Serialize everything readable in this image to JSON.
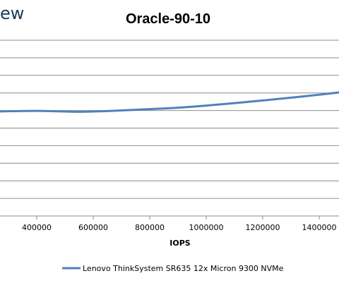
{
  "brand": {
    "logo_fragment": "ew"
  },
  "chart_data": {
    "type": "line",
    "title": "Oracle-90-10",
    "xlabel": "IOPS",
    "ylabel": "",
    "x_ticks": [
      400000,
      600000,
      800000,
      1000000,
      1200000,
      1400000
    ],
    "x_tick_labels": [
      "400000",
      "600000",
      "800000",
      "1000000",
      "1200000",
      "1400000"
    ],
    "xlim": [
      270000,
      1470000
    ],
    "ylim": [
      0,
      10
    ],
    "grid": "horizontal",
    "legend_position": "bottom",
    "series": [
      {
        "name": "Lenovo ThinkSystem SR635 12x Micron 9300 NVMe",
        "color": "#4f81bd",
        "x": [
          270000,
          400000,
          550000,
          650000,
          800000,
          900000,
          1000000,
          1100000,
          1200000,
          1300000,
          1400000,
          1470000
        ],
        "y": [
          5.95,
          5.98,
          5.93,
          5.97,
          6.08,
          6.16,
          6.28,
          6.42,
          6.57,
          6.73,
          6.9,
          7.03
        ]
      }
    ]
  }
}
